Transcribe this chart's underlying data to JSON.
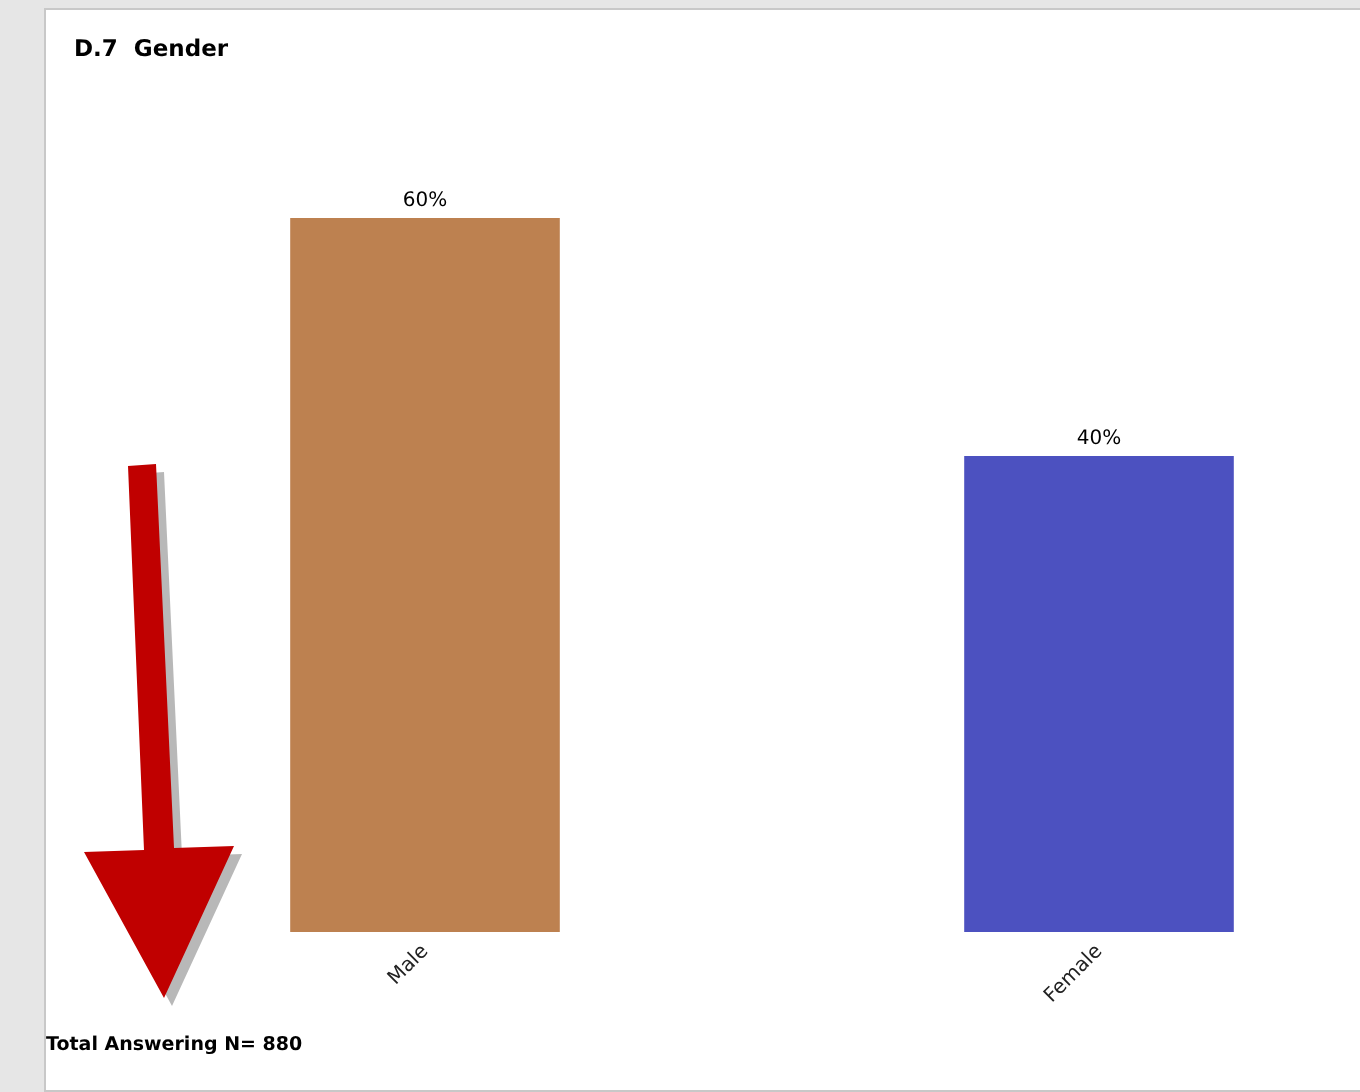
{
  "chart_data": {
    "type": "bar",
    "title": "D.7  Gender",
    "categories": [
      "Male",
      "Female"
    ],
    "values": [
      60,
      40
    ],
    "colors": [
      "#bd8150",
      "#4c51c0"
    ],
    "value_labels": [
      "60%",
      "40%"
    ],
    "annotations": [
      "Total Answering N= 880"
    ]
  }
}
